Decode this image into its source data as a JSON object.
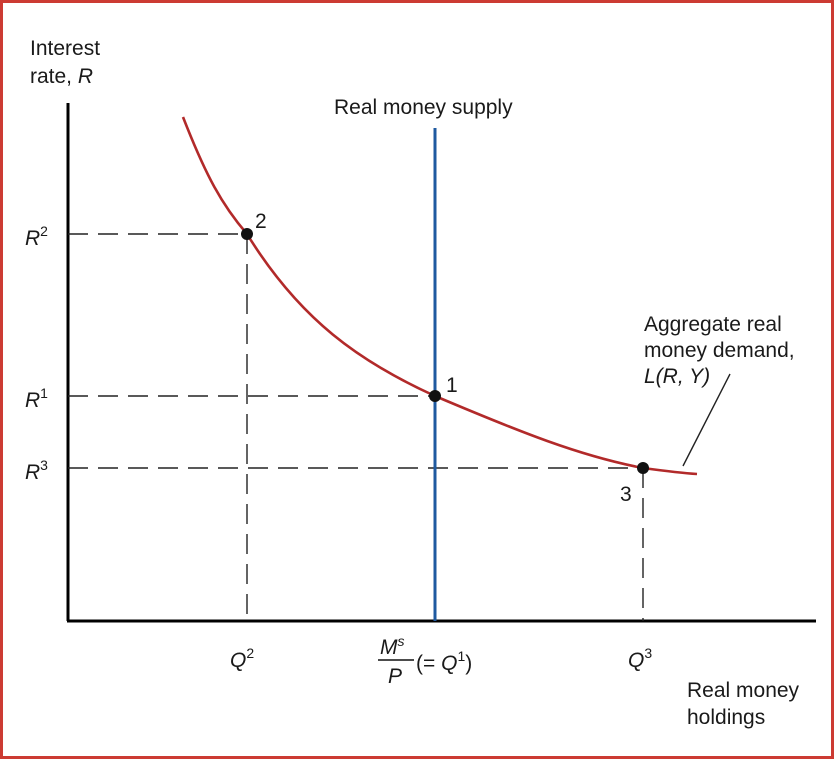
{
  "colors": {
    "frame": "#cc3b33",
    "demand_curve": "#b22a2a",
    "supply_line": "#1f5aa0",
    "axes": "#000000",
    "guides": "#222222"
  },
  "axes": {
    "y_label_line1": "Interest",
    "y_label_line2": "rate, ",
    "y_label_var": "R",
    "x_label_line1": "Real money",
    "x_label_line2": "holdings"
  },
  "supply": {
    "label": "Real money supply"
  },
  "demand": {
    "label_line1": "Aggregate real",
    "label_line2": "money demand,",
    "label_line3": "L(R, Y)"
  },
  "y_ticks": [
    {
      "base": "R",
      "sup": "2"
    },
    {
      "base": "R",
      "sup": "1"
    },
    {
      "base": "R",
      "sup": "3"
    }
  ],
  "x_ticks": {
    "q2_base": "Q",
    "q2_sup": "2",
    "ms_num": "M",
    "ms_num_sup": "s",
    "ms_den": "P",
    "ms_paren_open": "(= ",
    "ms_q": "Q",
    "ms_q_sup": "1",
    "ms_paren_close": ")",
    "q3_base": "Q",
    "q3_sup": "3"
  },
  "points": [
    {
      "label": "2"
    },
    {
      "label": "1"
    },
    {
      "label": "3"
    }
  ]
}
